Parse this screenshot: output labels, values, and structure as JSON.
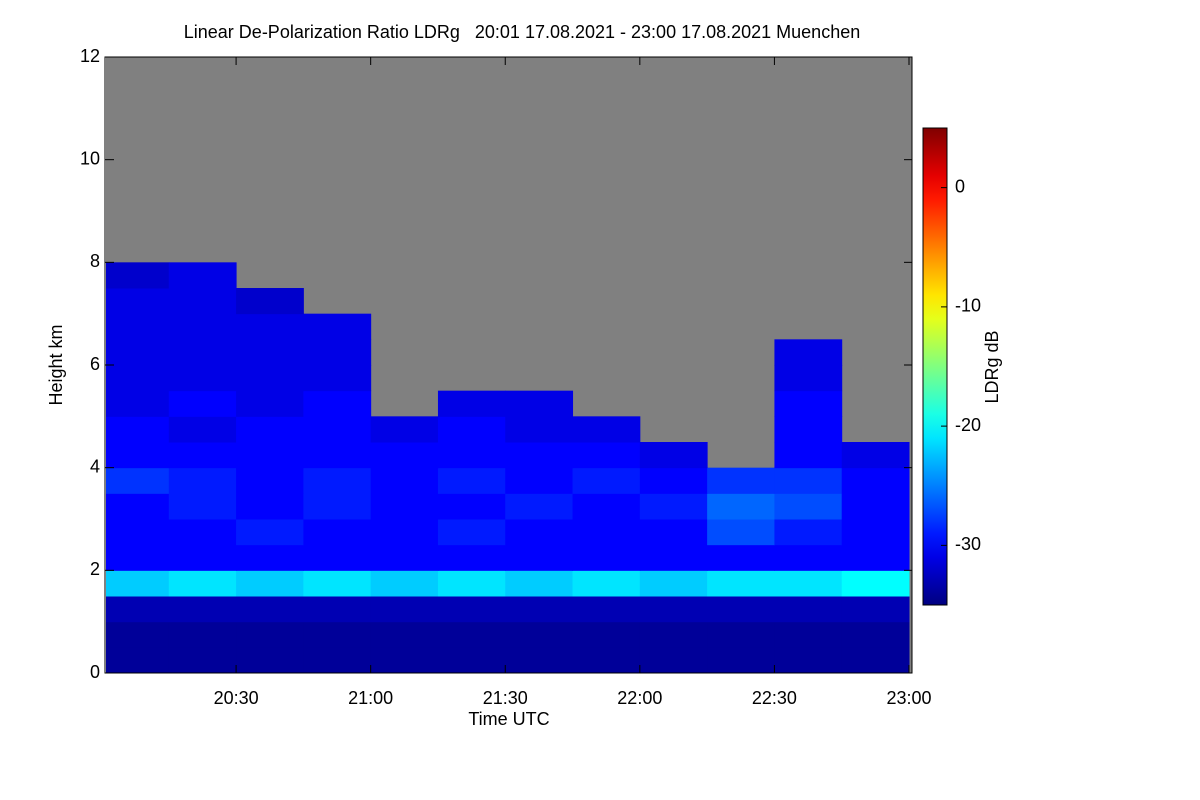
{
  "chart_data": {
    "type": "heatmap",
    "title": "Linear De-Polarization Ratio LDRg   20:01 17.08.2021 - 23:00 17.08.2021 Muenchen",
    "x_label": "Time UTC",
    "y_label": "Height km",
    "colorbar_label": "LDRg dB",
    "xlim": [
      20.0167,
      23.0
    ],
    "xticks": [
      {
        "value": 20.5,
        "label": "20:30"
      },
      {
        "value": 21,
        "label": "21:00"
      },
      {
        "value": 21.5,
        "label": "21:30"
      },
      {
        "value": 22,
        "label": "22:00"
      },
      {
        "value": 22.5,
        "label": "22:30"
      },
      {
        "value": 23,
        "label": "23:00"
      }
    ],
    "ylim": [
      0,
      12
    ],
    "yticks": [
      0,
      2,
      4,
      6,
      8,
      10,
      12
    ],
    "clim": [
      -35,
      5
    ],
    "cticks": [
      0,
      -10,
      -20,
      -30
    ],
    "colormap": "jet",
    "missing_color": "#808080",
    "x": [
      20.125,
      20.375,
      20.625,
      20.875,
      21.125,
      21.375,
      21.625,
      21.875,
      22.125,
      22.375,
      22.625,
      22.875
    ],
    "y": [
      0.25,
      0.75,
      1.25,
      1.75,
      2.25,
      2.75,
      3.25,
      3.75,
      4.25,
      4.75,
      5.25,
      5.75,
      6.25,
      6.75,
      7.25,
      7.75,
      8.25,
      8.75,
      9.25,
      9.75,
      10.25,
      10.75,
      11.25,
      11.75
    ],
    "values": [
      [
        -34,
        -34,
        -34,
        -34,
        -34,
        -34,
        -34,
        -34,
        -34,
        -34,
        -34,
        -34
      ],
      [
        -34,
        -34,
        -34,
        -34,
        -34,
        -34,
        -34,
        -34,
        -34,
        -34,
        -34,
        -34
      ],
      [
        -33,
        -33,
        -33,
        -33,
        -33,
        -33,
        -33,
        -33,
        -33,
        -33,
        -33,
        -33
      ],
      [
        -22,
        -21,
        -22,
        -21,
        -22,
        -21,
        -22,
        -21,
        -22,
        -21,
        -21,
        -20
      ],
      [
        -30,
        -30,
        -30,
        -30,
        -30,
        -30,
        -30,
        -30,
        -30,
        -30,
        -30,
        -30
      ],
      [
        -30,
        -30,
        -29,
        -30,
        -30,
        -29,
        -30,
        -30,
        -30,
        -27,
        -29,
        -30
      ],
      [
        -30,
        -29,
        -30,
        -29,
        -30,
        -30,
        -29,
        -30,
        -29,
        -26,
        -27,
        -30
      ],
      [
        -28,
        -29,
        -30,
        -29,
        -30,
        -29,
        -30,
        -29,
        -30,
        -28,
        -28,
        -30
      ],
      [
        -30,
        -30,
        -30,
        -30,
        -30,
        -30,
        -30,
        -30,
        -31,
        null,
        -30,
        -31
      ],
      [
        -30,
        -31,
        -30,
        -30,
        -31,
        -30,
        -31,
        -31,
        null,
        null,
        -30,
        null
      ],
      [
        -31,
        -30,
        -31,
        -30,
        null,
        -31,
        -31,
        null,
        null,
        null,
        -30,
        null
      ],
      [
        -31,
        -31,
        -31,
        -31,
        null,
        null,
        null,
        null,
        null,
        null,
        -31,
        null
      ],
      [
        -31,
        -31,
        -31,
        -31,
        null,
        null,
        null,
        null,
        null,
        null,
        -31,
        null
      ],
      [
        -31,
        -31,
        -31,
        -31,
        null,
        null,
        null,
        null,
        null,
        null,
        null,
        null
      ],
      [
        -31,
        -31,
        -32,
        null,
        null,
        null,
        null,
        null,
        null,
        null,
        null,
        null
      ],
      [
        -32,
        -31,
        null,
        null,
        null,
        null,
        null,
        null,
        null,
        null,
        null,
        null
      ],
      [
        null,
        null,
        null,
        null,
        null,
        null,
        null,
        null,
        null,
        null,
        null,
        null
      ],
      [
        null,
        null,
        null,
        null,
        null,
        null,
        null,
        null,
        null,
        null,
        null,
        null
      ],
      [
        null,
        null,
        null,
        null,
        null,
        null,
        null,
        null,
        null,
        null,
        null,
        null
      ],
      [
        null,
        null,
        null,
        null,
        null,
        null,
        null,
        null,
        null,
        null,
        null,
        null
      ],
      [
        null,
        null,
        null,
        null,
        null,
        null,
        null,
        null,
        null,
        null,
        null,
        null
      ],
      [
        null,
        null,
        null,
        null,
        null,
        null,
        null,
        null,
        null,
        null,
        null,
        null
      ],
      [
        null,
        null,
        null,
        null,
        null,
        null,
        null,
        null,
        null,
        null,
        null,
        null
      ],
      [
        null,
        null,
        null,
        null,
        null,
        null,
        null,
        null,
        null,
        null,
        null,
        null
      ]
    ]
  }
}
